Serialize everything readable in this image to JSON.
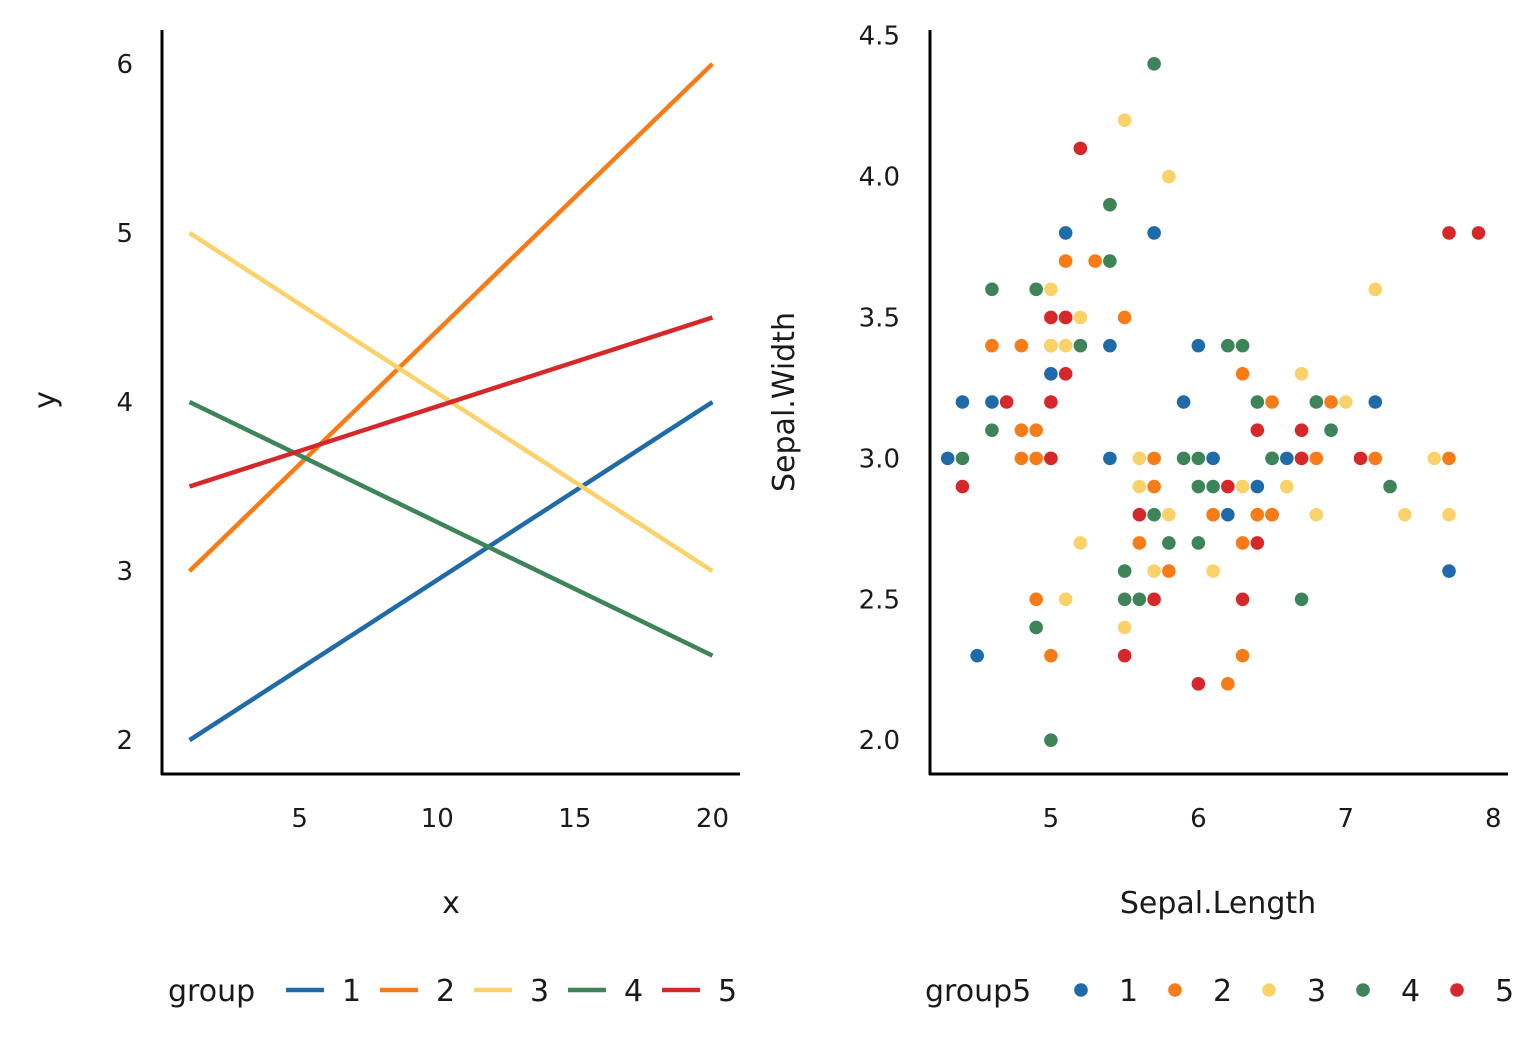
{
  "colors": {
    "1": "#1f6aa8",
    "2": "#f77c17",
    "3": "#fbd26a",
    "4": "#3d8459",
    "5": "#d6282a"
  },
  "chart_data": [
    {
      "type": "line",
      "xlabel": "x",
      "ylabel": "y",
      "xlim": [
        0,
        21
      ],
      "ylim": [
        1.8,
        6.2
      ],
      "xticks": [
        5,
        10,
        15,
        20
      ],
      "yticks": [
        2,
        3,
        4,
        5,
        6
      ],
      "grid": false,
      "legend": {
        "title": "group",
        "position": "bottom",
        "entries": [
          "1",
          "2",
          "3",
          "4",
          "5"
        ]
      },
      "series": [
        {
          "name": "1",
          "points": [
            [
              1,
              2.0
            ],
            [
              20,
              4.0
            ]
          ]
        },
        {
          "name": "2",
          "points": [
            [
              1,
              3.0
            ],
            [
              20,
              6.0
            ]
          ]
        },
        {
          "name": "3",
          "points": [
            [
              1,
              5.0
            ],
            [
              20,
              3.0
            ]
          ]
        },
        {
          "name": "4",
          "points": [
            [
              1,
              4.0
            ],
            [
              20,
              2.5
            ]
          ]
        },
        {
          "name": "5",
          "points": [
            [
              1,
              3.5
            ],
            [
              20,
              4.5
            ]
          ]
        }
      ]
    },
    {
      "type": "scatter",
      "xlabel": "Sepal.Length",
      "ylabel": "Sepal.Width",
      "xlim": [
        4.18,
        8.1
      ],
      "ylim": [
        1.88,
        4.52
      ],
      "xticks": [
        5,
        6,
        7,
        8
      ],
      "yticks": [
        2.0,
        2.5,
        3.0,
        3.5,
        4.0,
        4.5
      ],
      "ytick_labels": [
        "2.0",
        "2.5",
        "3.0",
        "3.5",
        "4.0",
        "4.5"
      ],
      "grid": false,
      "legend": {
        "title": "group5",
        "position": "bottom",
        "entries": [
          "1",
          "2",
          "3",
          "4",
          "5"
        ]
      },
      "series": [
        {
          "name": "1",
          "points": [
            [
              4.3,
              3.0
            ],
            [
              4.4,
              3.2
            ],
            [
              4.5,
              2.3
            ],
            [
              4.6,
              3.2
            ],
            [
              5.0,
              3.3
            ],
            [
              5.1,
              3.8
            ],
            [
              5.4,
              3.4
            ],
            [
              5.4,
              3.0
            ],
            [
              5.7,
              3.8
            ],
            [
              5.9,
              3.2
            ],
            [
              6.0,
              3.4
            ],
            [
              6.1,
              3.0
            ],
            [
              6.2,
              2.8
            ],
            [
              6.4,
              2.9
            ],
            [
              6.5,
              2.8
            ],
            [
              6.5,
              3.0
            ],
            [
              6.6,
              3.0
            ],
            [
              7.2,
              3.2
            ],
            [
              7.7,
              2.6
            ]
          ]
        },
        {
          "name": "2",
          "points": [
            [
              4.6,
              3.4
            ],
            [
              4.8,
              3.4
            ],
            [
              4.8,
              3.1
            ],
            [
              4.8,
              3.0
            ],
            [
              4.9,
              3.1
            ],
            [
              4.9,
              3.0
            ],
            [
              4.9,
              2.5
            ],
            [
              5.0,
              3.4
            ],
            [
              5.0,
              3.0
            ],
            [
              5.0,
              2.3
            ],
            [
              5.1,
              3.7
            ],
            [
              5.1,
              3.5
            ],
            [
              5.3,
              3.7
            ],
            [
              5.5,
              3.5
            ],
            [
              5.6,
              2.7
            ],
            [
              5.7,
              3.0
            ],
            [
              5.7,
              2.9
            ],
            [
              5.8,
              2.6
            ],
            [
              6.1,
              2.8
            ],
            [
              6.2,
              2.2
            ],
            [
              6.3,
              3.3
            ],
            [
              6.3,
              2.7
            ],
            [
              6.3,
              2.3
            ],
            [
              6.4,
              2.8
            ],
            [
              6.5,
              3.2
            ],
            [
              6.5,
              2.8
            ],
            [
              6.7,
              3.0
            ],
            [
              6.8,
              3.0
            ],
            [
              6.9,
              3.2
            ],
            [
              7.2,
              3.0
            ],
            [
              7.7,
              3.0
            ]
          ]
        },
        {
          "name": "3",
          "points": [
            [
              5.0,
              3.6
            ],
            [
              5.0,
              3.4
            ],
            [
              5.1,
              3.4
            ],
            [
              5.1,
              2.5
            ],
            [
              5.2,
              3.5
            ],
            [
              5.2,
              2.7
            ],
            [
              5.4,
              3.9
            ],
            [
              5.5,
              4.2
            ],
            [
              5.5,
              2.4
            ],
            [
              5.6,
              3.0
            ],
            [
              5.6,
              2.9
            ],
            [
              5.7,
              2.6
            ],
            [
              5.8,
              4.0
            ],
            [
              5.8,
              2.8
            ],
            [
              6.1,
              2.6
            ],
            [
              6.3,
              2.9
            ],
            [
              6.5,
              3.0
            ],
            [
              6.6,
              2.9
            ],
            [
              6.7,
              3.3
            ],
            [
              6.8,
              2.8
            ],
            [
              7.0,
              3.2
            ],
            [
              7.2,
              3.6
            ],
            [
              7.4,
              2.8
            ],
            [
              7.6,
              3.0
            ],
            [
              7.7,
              2.8
            ]
          ]
        },
        {
          "name": "4",
          "points": [
            [
              4.4,
              3.0
            ],
            [
              4.6,
              3.6
            ],
            [
              4.6,
              3.1
            ],
            [
              4.9,
              3.6
            ],
            [
              4.9,
              2.4
            ],
            [
              5.0,
              2.0
            ],
            [
              5.2,
              3.4
            ],
            [
              5.4,
              3.9
            ],
            [
              5.4,
              3.7
            ],
            [
              5.5,
              2.6
            ],
            [
              5.5,
              2.5
            ],
            [
              5.6,
              2.5
            ],
            [
              5.7,
              4.4
            ],
            [
              5.7,
              2.8
            ],
            [
              5.8,
              2.7
            ],
            [
              5.9,
              3.0
            ],
            [
              6.0,
              3.0
            ],
            [
              6.0,
              2.9
            ],
            [
              6.0,
              2.7
            ],
            [
              6.1,
              2.9
            ],
            [
              6.2,
              3.4
            ],
            [
              6.3,
              3.4
            ],
            [
              6.4,
              3.2
            ],
            [
              6.5,
              3.0
            ],
            [
              6.7,
              2.5
            ],
            [
              6.8,
              3.2
            ],
            [
              6.9,
              3.1
            ],
            [
              7.3,
              2.9
            ]
          ]
        },
        {
          "name": "5",
          "points": [
            [
              4.4,
              2.9
            ],
            [
              4.7,
              3.2
            ],
            [
              5.0,
              3.5
            ],
            [
              5.0,
              3.2
            ],
            [
              5.0,
              3.0
            ],
            [
              5.1,
              3.5
            ],
            [
              5.1,
              3.3
            ],
            [
              5.2,
              4.1
            ],
            [
              5.5,
              2.3
            ],
            [
              5.6,
              2.8
            ],
            [
              5.7,
              2.5
            ],
            [
              6.0,
              2.2
            ],
            [
              6.2,
              2.9
            ],
            [
              6.3,
              2.5
            ],
            [
              6.4,
              3.1
            ],
            [
              6.4,
              2.7
            ],
            [
              6.7,
              3.1
            ],
            [
              6.7,
              3.0
            ],
            [
              7.1,
              3.0
            ],
            [
              7.7,
              3.8
            ],
            [
              7.9,
              3.8
            ]
          ]
        }
      ]
    }
  ]
}
